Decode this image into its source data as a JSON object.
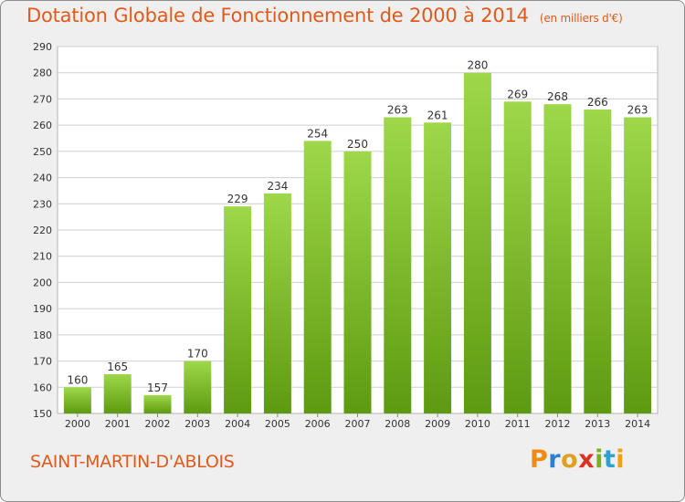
{
  "title": "Dotation Globale de Fonctionnement de 2000 à 2014",
  "unit": "(en milliers d'€)",
  "commune": "SAINT-MARTIN-D'ABLOIS",
  "logo": {
    "letters": [
      "P",
      "r",
      "o",
      "x",
      "i",
      "t",
      "i"
    ],
    "colors": [
      "#f08a10",
      "#2f7fd0",
      "#e0a020",
      "#e03020",
      "#7ab020",
      "#2f9fd0",
      "#f0a010"
    ]
  },
  "colors": {
    "text_accent": "#e05a1a",
    "bar_top": "#9ed84a",
    "bar_bottom": "#5e9a10",
    "grid": "#cfcfcf",
    "plot_bg": "#ffffff"
  },
  "chart_data": {
    "type": "bar",
    "title": "Dotation Globale de Fonctionnement de 2000 à 2014",
    "xlabel": "",
    "ylabel": "(en milliers d'€)",
    "categories": [
      "2000",
      "2001",
      "2002",
      "2003",
      "2004",
      "2005",
      "2006",
      "2007",
      "2008",
      "2009",
      "2010",
      "2011",
      "2012",
      "2013",
      "2014"
    ],
    "values": [
      160,
      165,
      157,
      170,
      229,
      234,
      254,
      250,
      263,
      261,
      280,
      269,
      268,
      266,
      263
    ],
    "ylim": [
      150,
      290
    ],
    "yticks": [
      150,
      160,
      170,
      180,
      190,
      200,
      210,
      220,
      230,
      240,
      250,
      260,
      270,
      280,
      290
    ],
    "grid": true,
    "legend": "none"
  }
}
